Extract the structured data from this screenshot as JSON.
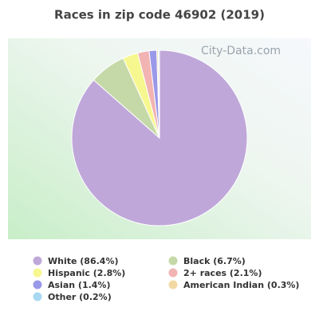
{
  "chart_data": {
    "type": "pie",
    "title": "Races in zip code 46902 (2019)",
    "watermark": "City-Data.com",
    "categories": [
      "White (86.4%)",
      "Black (6.7%)",
      "Hispanic (2.8%)",
      "2+ races (2.1%)",
      "Asian (1.4%)",
      "American Indian (0.3%)",
      "Other (0.2%)"
    ],
    "values": [
      86.4,
      6.7,
      2.8,
      2.1,
      1.4,
      0.3,
      0.2
    ],
    "colors": [
      "#bfa8d9",
      "#c5d9a8",
      "#f7f78f",
      "#f2b3b3",
      "#9a98e8",
      "#f2d9a4",
      "#a9d8f2"
    ]
  }
}
